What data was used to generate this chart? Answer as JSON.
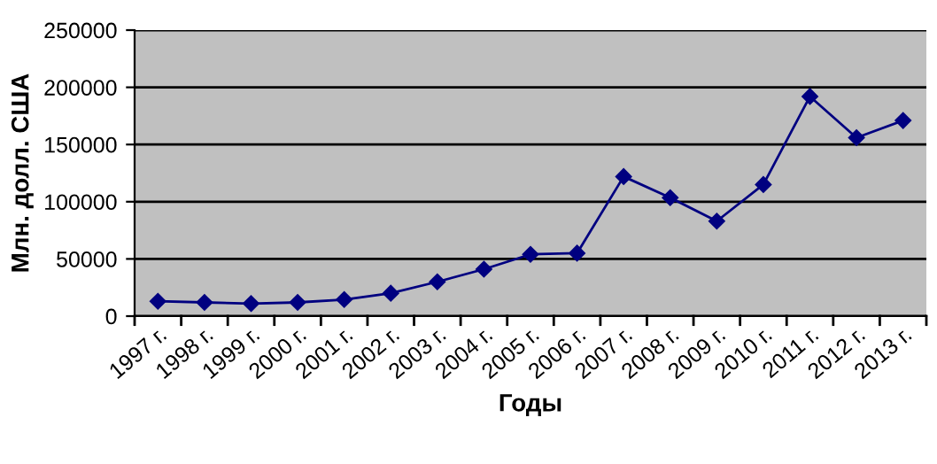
{
  "chart_data": {
    "type": "line",
    "xlabel": "Годы",
    "ylabel": "Млн. долл. США",
    "categories": [
      "1997 г.",
      "1998 г.",
      "1999 г.",
      "2000 г.",
      "2001 г.",
      "2002 г.",
      "2003 г.",
      "2004 г.",
      "2005 г.",
      "2006 г.",
      "2007 г.",
      "2008 г.",
      "2009 г.",
      "2010 г.",
      "2011 г.",
      "2012 г.",
      "2013 г."
    ],
    "series": [
      {
        "color": "#000080",
        "values": [
          13000,
          12000,
          11000,
          12000,
          14500,
          20000,
          30000,
          41000,
          54000,
          55000,
          122000,
          103500,
          83000,
          115000,
          192000,
          156000,
          171000
        ]
      }
    ],
    "ylim": [
      0,
      250000
    ],
    "yticks": [
      0,
      50000,
      100000,
      150000,
      200000,
      250000
    ],
    "grid": "y",
    "marker": "diamond",
    "line_style": "solid",
    "legend": false
  }
}
